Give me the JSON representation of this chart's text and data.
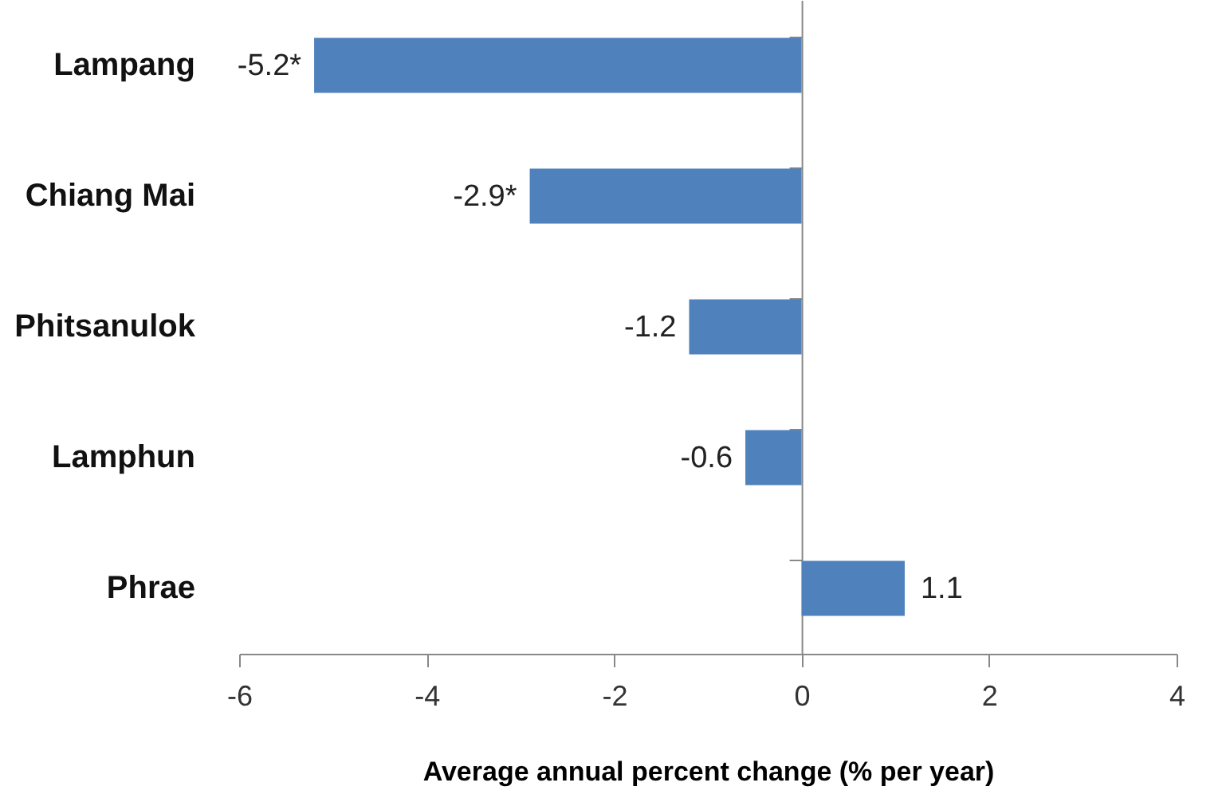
{
  "chart_data": {
    "type": "bar",
    "orientation": "horizontal",
    "xlabel": "Average annual percent change (% per year)",
    "categories": [
      "Lampang",
      "Chiang Mai",
      "Phitsanulok",
      "Lamphun",
      "Phrae"
    ],
    "values": [
      -5.2,
      -2.9,
      -1.2,
      -0.6,
      1.1
    ],
    "value_labels": [
      "-5.2*",
      "-2.9*",
      "-1.2",
      "-0.6",
      "1.1"
    ],
    "color": "#4f81bd",
    "xlim": [
      -6,
      4
    ],
    "xticks": [
      -6,
      -4,
      -2,
      0,
      2,
      4
    ]
  }
}
